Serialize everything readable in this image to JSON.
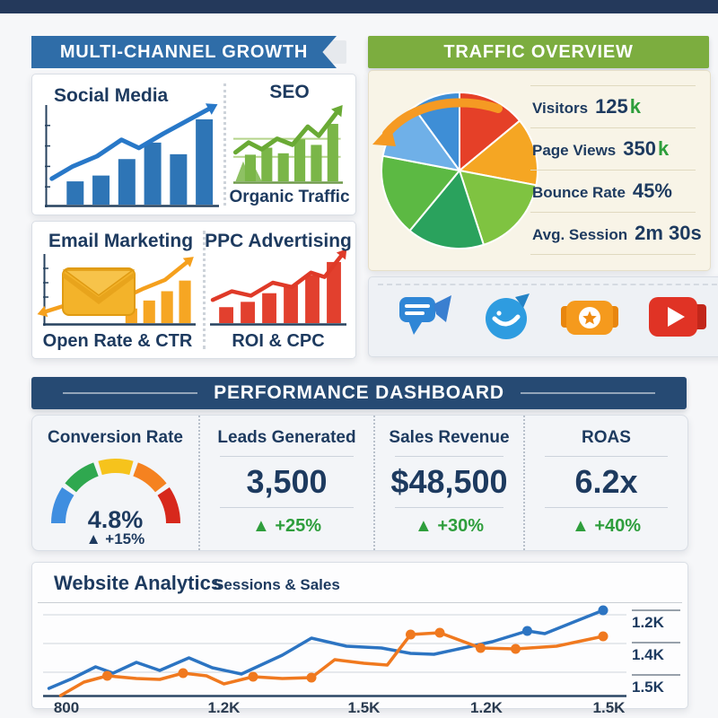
{
  "page": {
    "background": "#f6f7f9",
    "top_strip_color": "#24395b"
  },
  "colors": {
    "navy_text": "#1d3a5f",
    "banner_blue": "#2f6da8",
    "banner_green": "#7cad3f",
    "banner_navy": "#264a73",
    "value_green": "#2e9e3c",
    "line_blue": "#2c74c2",
    "line_orange": "#f0791f",
    "traffic_panel_bg": "#f8f4e7"
  },
  "multi_channel": {
    "banner_label": "MULTI-CHANNEL GROWTH",
    "channels": [
      {
        "title": "Social Media",
        "subtitle": ""
      },
      {
        "title": "SEO",
        "subtitle": "Organic Traffic"
      },
      {
        "title": "Email Marketing",
        "subtitle": "Open Rate & CTR"
      },
      {
        "title": "PPC Advertising",
        "subtitle": "ROI & CPC"
      }
    ]
  },
  "traffic": {
    "banner_label": "TRAFFIC OVERVIEW",
    "stats": [
      {
        "label": "Visitors",
        "value": "125",
        "suffix": "k"
      },
      {
        "label": "Page Views",
        "value": "350",
        "suffix": "k"
      },
      {
        "label": "Bounce Rate",
        "value": "45%",
        "suffix": ""
      },
      {
        "label": "Avg. Session",
        "value": "2m 30s",
        "suffix": ""
      }
    ]
  },
  "performance": {
    "banner_label": "PERFORMANCE DASHBOARD",
    "metrics": [
      {
        "title": "Conversion Rate",
        "value": "4.8%",
        "delta_arrow": "▲",
        "delta": "+15%",
        "delta_color": "#1d3a5f"
      },
      {
        "title": "Leads Generated",
        "value": "3,500",
        "delta_arrow": "▲",
        "delta": "+25%",
        "delta_color": "#2e9e3c"
      },
      {
        "title": "Sales Revenue",
        "value": "$48,500",
        "delta_arrow": "▲",
        "delta": "+30%",
        "delta_color": "#2e9e3c"
      },
      {
        "title": "ROAS",
        "value": "6.2x",
        "delta_arrow": "▲",
        "delta": "+40%",
        "delta_color": "#2e9e3c"
      }
    ]
  },
  "analytics": {
    "title": "Website Analytics",
    "subtitle": "Sessions & Sales",
    "x_labels": [
      "800",
      "1.2K",
      "1.5K",
      "1.2K",
      "1.5K"
    ],
    "y_labels": [
      "1.2K",
      "1.4K",
      "1.5K"
    ]
  },
  "charts": {
    "social": {
      "type": "barline",
      "bar_color": "#2e75b6",
      "bars": [
        24,
        30,
        47,
        64,
        52,
        88
      ],
      "bars_offset": 0.1,
      "line_color": "#2878c8",
      "line_width": 5,
      "line": [
        [
          4,
          28
        ],
        [
          16,
          40
        ],
        [
          30,
          50
        ],
        [
          44,
          66
        ],
        [
          54,
          58
        ],
        [
          68,
          72
        ],
        [
          94,
          96
        ]
      ],
      "arrow": true,
      "axis": "left-bottom",
      "axis_color": "#27425f"
    },
    "seo": {
      "type": "barline",
      "bar_color": "#7ab648",
      "bars": [
        38,
        48,
        40,
        60,
        52,
        82
      ],
      "bars_offset": 0.08,
      "line_color": "#6aaa35",
      "line_width": 5,
      "line": [
        [
          2,
          42
        ],
        [
          14,
          55
        ],
        [
          26,
          46
        ],
        [
          40,
          60
        ],
        [
          54,
          52
        ],
        [
          68,
          76
        ],
        [
          78,
          64
        ],
        [
          94,
          94
        ]
      ],
      "arrow": true,
      "guides": [
        40,
        64
      ],
      "guide_color": "#b5d48b",
      "mounds": true,
      "axis": "bottom",
      "axis_color": "#6f9a4a"
    },
    "email": {
      "type": "barline",
      "bar_color": "#f6a623",
      "bars": [
        22,
        34,
        48,
        64
      ],
      "bars_offset": 0.52,
      "line_color": "#f5a01d",
      "line_width": 4.5,
      "line": [
        [
          2,
          20
        ],
        [
          14,
          28
        ],
        [
          26,
          24
        ],
        [
          38,
          32
        ],
        [
          52,
          38
        ],
        [
          66,
          52
        ],
        [
          80,
          64
        ],
        [
          94,
          88
        ]
      ],
      "arrow": true,
      "arrow_start": true,
      "axis": "left-bottom",
      "axis_color": "#27425f"
    },
    "ppc": {
      "type": "barline",
      "bar_color": "#e2402e",
      "bars": [
        24,
        32,
        45,
        57,
        72,
        92
      ],
      "bars_offset": 0.04,
      "line_color": "#df3a28",
      "line_width": 4.5,
      "line": [
        [
          2,
          36
        ],
        [
          16,
          48
        ],
        [
          30,
          42
        ],
        [
          46,
          60
        ],
        [
          60,
          54
        ],
        [
          74,
          74
        ],
        [
          84,
          68
        ],
        [
          96,
          97
        ]
      ],
      "arrow": true,
      "axis": "bottom",
      "axis_color": "#27425f"
    },
    "pie": {
      "type": "pie",
      "slices": [
        {
          "color": "#e54028",
          "value": 14
        },
        {
          "color": "#f5a623",
          "value": 14
        },
        {
          "color": "#7fc341",
          "value": 17
        },
        {
          "color": "#2aa25d",
          "value": 16
        },
        {
          "color": "#5cb943",
          "value": 17
        },
        {
          "color": "#6fb0e8",
          "value": 12
        },
        {
          "color": "#3e8ed6",
          "value": 10
        }
      ]
    },
    "gauge": {
      "type": "gauge",
      "segments": [
        {
          "color": "#3f8ee0"
        },
        {
          "color": "#2fa84f"
        },
        {
          "color": "#f6c31c"
        },
        {
          "color": "#f58220"
        },
        {
          "color": "#d7281c"
        }
      ]
    },
    "main": {
      "type": "multiline",
      "grid": [
        8,
        40,
        72
      ],
      "axis": "bottom",
      "axis_color": "#2b4765",
      "series": [
        {
          "name": "Sessions",
          "color": "#2c74c2",
          "width": 3.5,
          "points": [
            [
              1,
              10
            ],
            [
              5,
              21
            ],
            [
              9,
              34
            ],
            [
              12,
              27
            ],
            [
              16,
              39
            ],
            [
              20,
              30
            ],
            [
              25,
              44
            ],
            [
              29,
              33
            ],
            [
              34,
              26
            ],
            [
              41,
              47
            ],
            [
              46,
              66
            ],
            [
              52,
              57
            ],
            [
              58,
              55
            ],
            [
              63,
              49
            ],
            [
              67,
              48
            ],
            [
              72,
              55
            ],
            [
              77,
              62
            ],
            [
              83,
              74
            ],
            [
              86,
              71
            ],
            [
              96,
              97
            ]
          ],
          "dots": [
            [
              83,
              74
            ],
            [
              96,
              97
            ]
          ],
          "dot_r": 5.5
        },
        {
          "name": "Sales",
          "color": "#f0791f",
          "width": 3.5,
          "points": [
            [
              3,
              2
            ],
            [
              7,
              17
            ],
            [
              11,
              24
            ],
            [
              16,
              21
            ],
            [
              20,
              20
            ],
            [
              24,
              27
            ],
            [
              28,
              24
            ],
            [
              31,
              15
            ],
            [
              36,
              23
            ],
            [
              41,
              21
            ],
            [
              46,
              22
            ],
            [
              50,
              42
            ],
            [
              55,
              38
            ],
            [
              59,
              36
            ],
            [
              63,
              70
            ],
            [
              68,
              72
            ],
            [
              75,
              55
            ],
            [
              81,
              54
            ],
            [
              88,
              57
            ],
            [
              96,
              68
            ]
          ],
          "dots": [
            [
              11,
              24
            ],
            [
              24,
              27
            ],
            [
              36,
              23
            ],
            [
              46,
              22
            ],
            [
              63,
              70
            ],
            [
              68,
              72
            ],
            [
              75,
              55
            ],
            [
              81,
              54
            ],
            [
              96,
              68
            ]
          ],
          "dot_r": 5.5
        }
      ]
    }
  },
  "chart_data": [
    {
      "type": "pie",
      "title": "TRAFFIC OVERVIEW",
      "slices": [
        {
          "color": "#e54028",
          "value": 14
        },
        {
          "color": "#f5a623",
          "value": 14
        },
        {
          "color": "#7fc341",
          "value": 17
        },
        {
          "color": "#2aa25d",
          "value": 16
        },
        {
          "color": "#5cb943",
          "value": 17
        },
        {
          "color": "#6fb0e8",
          "value": 12
        },
        {
          "color": "#3e8ed6",
          "value": 10
        }
      ],
      "note": "slice sizes estimated in percent; no slice labels shown"
    },
    {
      "type": "table",
      "title": "TRAFFIC OVERVIEW stats",
      "rows": [
        [
          "Visitors",
          "125k"
        ],
        [
          "Page Views",
          "350k"
        ],
        [
          "Bounce Rate",
          "45%"
        ],
        [
          "Avg. Session",
          "2m 30s"
        ]
      ]
    },
    {
      "type": "bar",
      "title": "Social Media",
      "values": [
        24,
        30,
        47,
        64,
        52,
        88
      ],
      "units": "relative height %"
    },
    {
      "type": "bar",
      "title": "SEO — Organic Traffic",
      "values": [
        38,
        48,
        40,
        60,
        52,
        82
      ],
      "units": "relative height %"
    },
    {
      "type": "bar",
      "title": "Email Marketing — Open Rate & CTR",
      "values": [
        22,
        34,
        48,
        64
      ],
      "units": "relative height %"
    },
    {
      "type": "bar",
      "title": "PPC Advertising — ROI & CPC",
      "values": [
        24,
        32,
        45,
        57,
        72,
        92
      ],
      "units": "relative height %"
    },
    {
      "type": "gauge",
      "title": "Conversion Rate",
      "value": "4.8%",
      "delta": "+15%",
      "segment_colors": [
        "#3f8ee0",
        "#2fa84f",
        "#f6c31c",
        "#f58220",
        "#d7281c"
      ]
    },
    {
      "type": "table",
      "title": "PERFORMANCE DASHBOARD",
      "rows": [
        [
          "Conversion Rate",
          "4.8%",
          "+15%"
        ],
        [
          "Leads Generated",
          "3,500",
          "+25%"
        ],
        [
          "Sales Revenue",
          "$48,500",
          "+30%"
        ],
        [
          "ROAS",
          "6.2x",
          "+40%"
        ]
      ]
    },
    {
      "type": "line",
      "title": "Website Analytics",
      "subtitle": "Sessions & Sales",
      "x_tick_labels": [
        "800",
        "1.2K",
        "1.5K",
        "1.2K",
        "1.5K"
      ],
      "y_tick_labels": [
        "1.2K",
        "1.4K",
        "1.5K"
      ],
      "series": [
        {
          "name": "Sessions",
          "color": "#2c74c2",
          "points": [
            [
              1,
              10
            ],
            [
              5,
              21
            ],
            [
              9,
              34
            ],
            [
              12,
              27
            ],
            [
              16,
              39
            ],
            [
              20,
              30
            ],
            [
              25,
              44
            ],
            [
              29,
              33
            ],
            [
              34,
              26
            ],
            [
              41,
              47
            ],
            [
              46,
              66
            ],
            [
              52,
              57
            ],
            [
              58,
              55
            ],
            [
              63,
              49
            ],
            [
              67,
              48
            ],
            [
              72,
              55
            ],
            [
              77,
              62
            ],
            [
              83,
              74
            ],
            [
              86,
              71
            ],
            [
              96,
              97
            ]
          ]
        },
        {
          "name": "Sales",
          "color": "#f0791f",
          "points": [
            [
              3,
              2
            ],
            [
              7,
              17
            ],
            [
              11,
              24
            ],
            [
              16,
              21
            ],
            [
              20,
              20
            ],
            [
              24,
              27
            ],
            [
              28,
              24
            ],
            [
              31,
              15
            ],
            [
              36,
              23
            ],
            [
              41,
              21
            ],
            [
              46,
              22
            ],
            [
              50,
              42
            ],
            [
              55,
              38
            ],
            [
              59,
              36
            ],
            [
              63,
              70
            ],
            [
              68,
              72
            ],
            [
              75,
              55
            ],
            [
              81,
              54
            ],
            [
              88,
              57
            ],
            [
              96,
              68
            ]
          ]
        }
      ],
      "units": "points are [x % of plot width, y % of plot height from bottom]; grid on; y labels at right"
    }
  ]
}
